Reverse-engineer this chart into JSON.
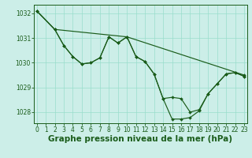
{
  "title": "Graphe pression niveau de la mer (hPa)",
  "bg_color": "#cceee8",
  "grid_color": "#99ddcc",
  "line_color": "#1a5c1a",
  "xlim_min": -0.3,
  "xlim_max": 23.3,
  "ylim_min": 1027.55,
  "ylim_max": 1032.35,
  "yticks": [
    1028,
    1029,
    1030,
    1031,
    1032
  ],
  "xticks": [
    0,
    1,
    2,
    3,
    4,
    5,
    6,
    7,
    8,
    9,
    10,
    11,
    12,
    13,
    14,
    15,
    16,
    17,
    18,
    19,
    20,
    21,
    22,
    23
  ],
  "line1_x": [
    0,
    2,
    10,
    23
  ],
  "line1_y": [
    1032.1,
    1031.35,
    1031.05,
    1029.5
  ],
  "line2_x": [
    0,
    2,
    3,
    4,
    5,
    6,
    7,
    8,
    9,
    10,
    11,
    12,
    13,
    14,
    15,
    16,
    17,
    18,
    19,
    20,
    21,
    22,
    23
  ],
  "line2_y": [
    1032.1,
    1031.35,
    1030.7,
    1030.25,
    1029.95,
    1030.0,
    1030.2,
    1031.05,
    1030.8,
    1031.05,
    1030.25,
    1030.05,
    1029.55,
    1028.55,
    1028.6,
    1028.55,
    1028.0,
    1028.1,
    1028.75,
    1029.15,
    1029.55,
    1029.6,
    1029.45
  ],
  "line3_x": [
    0,
    2,
    3,
    4,
    5,
    6,
    7,
    8,
    9,
    10,
    11,
    12,
    13,
    14,
    15,
    16,
    17,
    18,
    19,
    20,
    21,
    22,
    23
  ],
  "line3_y": [
    1032.1,
    1031.35,
    1030.7,
    1030.25,
    1029.95,
    1030.0,
    1030.2,
    1031.05,
    1030.8,
    1031.05,
    1030.25,
    1030.05,
    1029.55,
    1028.55,
    1027.72,
    1027.72,
    1027.78,
    1028.05,
    1028.75,
    1029.15,
    1029.55,
    1029.6,
    1029.45
  ],
  "title_fontsize": 7.5,
  "tick_fontsize": 5.5,
  "linewidth": 0.85,
  "markersize": 2.0
}
